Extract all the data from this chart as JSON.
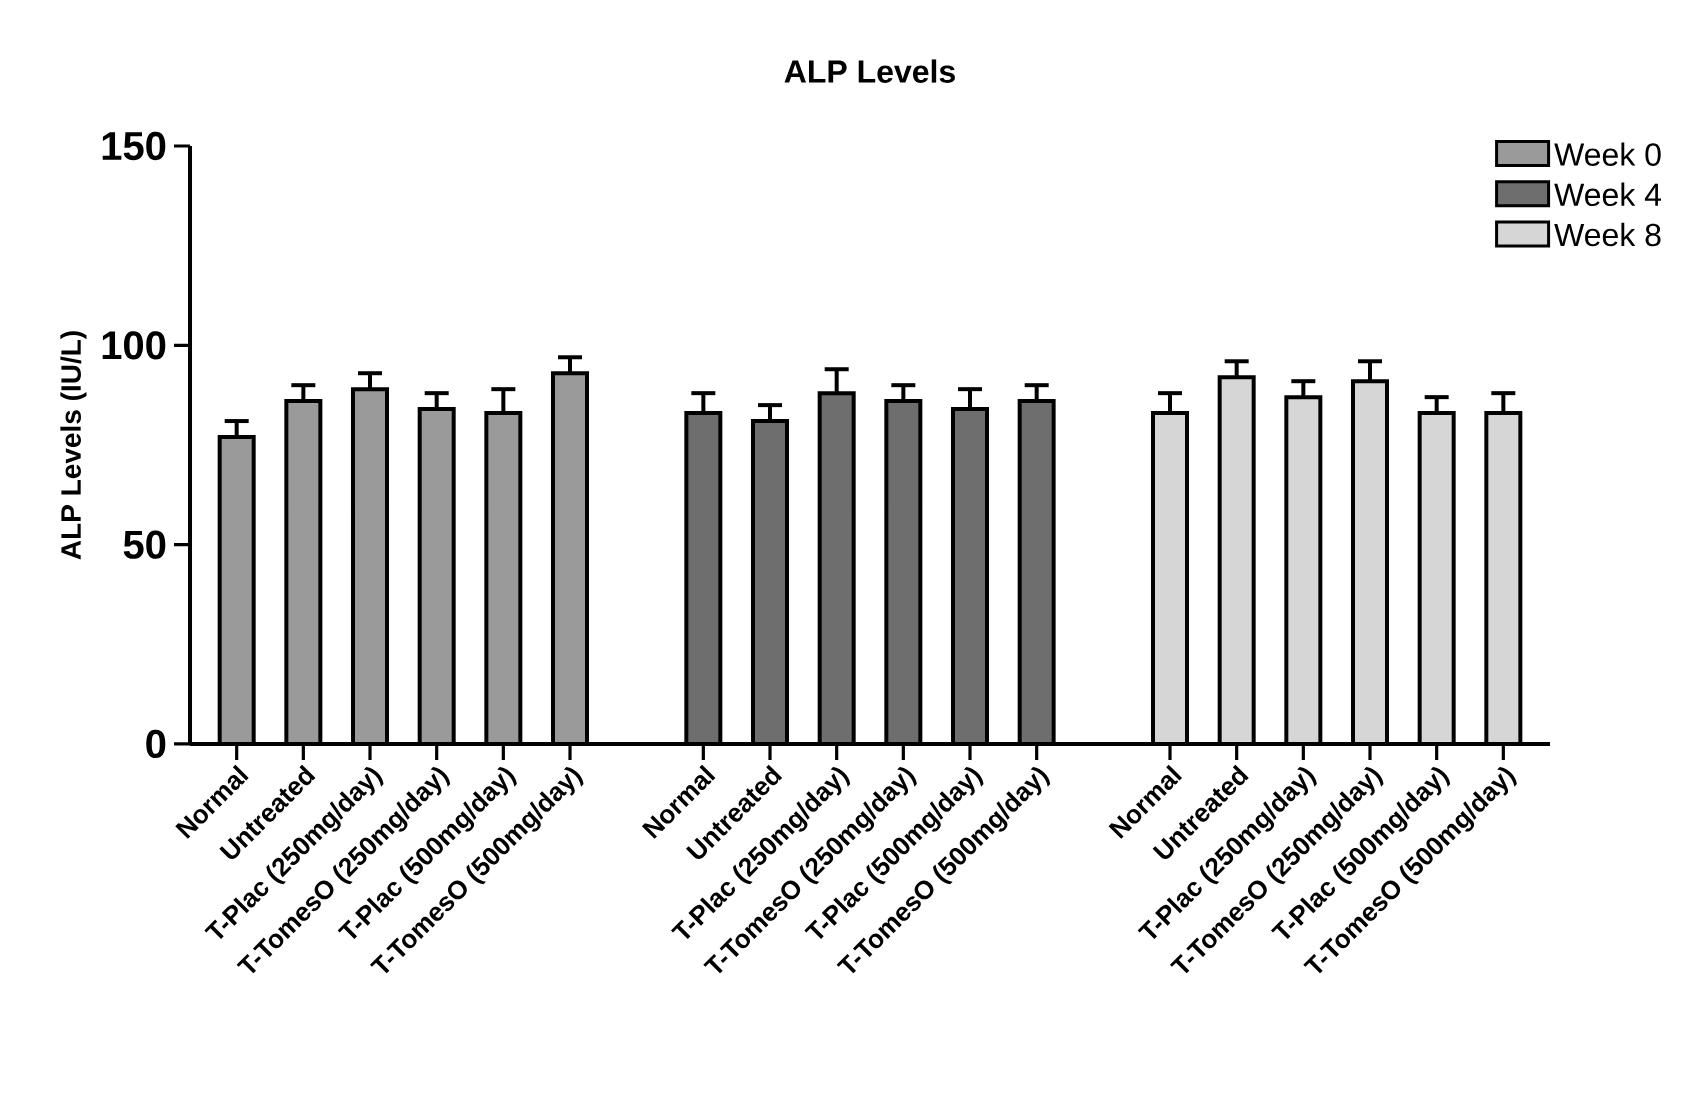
{
  "chart_data": {
    "type": "bar",
    "title": "ALP Levels",
    "ylabel": "ALP Levels (IU/L)",
    "categories": [
      "Normal",
      "Untreated",
      "T-Plac (250mg/day)",
      "T-TomesO (250mg/day)",
      "T-Plac (500mg/day)",
      "T-TomesO (500mg/day)",
      null,
      "Normal",
      "Untreated",
      "T-Plac (250mg/day)",
      "T-TomesO (250mg/day)",
      "T-Plac (500mg/day)",
      "T-TomesO (500mg/day)",
      null,
      "Normal",
      "Untreated",
      "T-Plac (250mg/day)",
      "T-TomesO (250mg/day)",
      "T-Plac (500mg/day)",
      "T-TomesO (500mg/day)"
    ],
    "series": [
      {
        "name": "Week 0",
        "color": "#9a9a9a",
        "values": [
          77,
          86,
          89,
          84,
          83,
          93,
          null,
          null,
          null,
          null,
          null,
          null,
          null,
          null,
          null,
          null,
          null,
          null,
          null,
          null
        ],
        "errors": [
          4,
          4,
          4,
          4,
          6,
          4,
          null,
          null,
          null,
          null,
          null,
          null,
          null,
          null,
          null,
          null,
          null,
          null,
          null,
          null
        ]
      },
      {
        "name": "Week 4",
        "color": "#6e6e6e",
        "values": [
          null,
          null,
          null,
          null,
          null,
          null,
          null,
          83,
          81,
          88,
          86,
          84,
          86,
          null,
          null,
          null,
          null,
          null,
          null,
          null
        ],
        "errors": [
          null,
          null,
          null,
          null,
          null,
          null,
          null,
          5,
          4,
          6,
          4,
          5,
          4,
          null,
          null,
          null,
          null,
          null,
          null,
          null
        ]
      },
      {
        "name": "Week 8",
        "color": "#d6d6d6",
        "values": [
          null,
          null,
          null,
          null,
          null,
          null,
          null,
          null,
          null,
          null,
          null,
          null,
          null,
          null,
          83,
          92,
          87,
          91,
          83,
          83
        ],
        "errors": [
          null,
          null,
          null,
          null,
          null,
          null,
          null,
          null,
          null,
          null,
          null,
          null,
          null,
          null,
          5,
          4,
          4,
          5,
          4,
          5
        ]
      }
    ],
    "ylim": [
      0,
      150
    ],
    "yticks": [
      0,
      50,
      100,
      150
    ],
    "legend": "top right"
  }
}
